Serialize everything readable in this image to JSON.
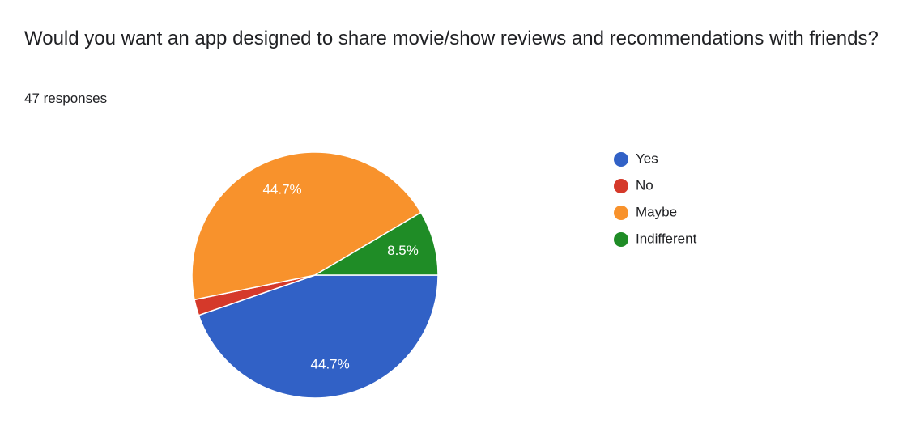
{
  "chart_data": {
    "type": "pie",
    "title": "Would you want an app designed to share movie/show reviews and recommendations with friends?",
    "subtitle": "47 responses",
    "categories": [
      "Yes",
      "No",
      "Maybe",
      "Indifferent"
    ],
    "values": [
      44.7,
      2.1,
      44.7,
      8.5
    ],
    "value_labels": [
      "44.7%",
      null,
      "44.7%",
      "8.5%"
    ],
    "colors": [
      "#3161c6",
      "#d5392a",
      "#f8922c",
      "#1f8c26"
    ],
    "legend": "right"
  }
}
